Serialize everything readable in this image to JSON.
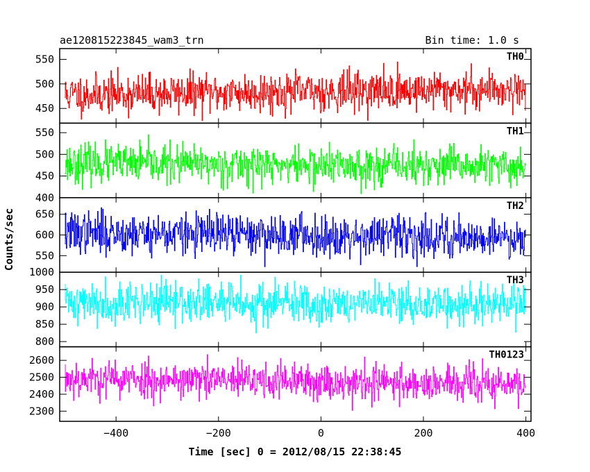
{
  "chart_data": {
    "type": "line",
    "title": "ae120815223845_wam3_trn",
    "subtitle": "Bin time: 1.0 s",
    "xlabel": "Time [sec] 0 = 2012/08/15 22:38:45",
    "ylabel": "Counts/sec",
    "xlim": [
      -510,
      410
    ],
    "xticks": [
      -400,
      -200,
      0,
      200,
      400
    ],
    "xtick_labels": [
      "−400",
      "−200",
      "0",
      "200",
      "400"
    ],
    "x_start": -500,
    "x_end": 400,
    "x_step": 1,
    "panels": [
      {
        "name": "TH0",
        "color": "#ff0000",
        "ylim": [
          420,
          572
        ],
        "yticks": [
          450,
          500,
          550
        ],
        "mean": 484,
        "sd": 20,
        "trend": 6,
        "seed": 11
      },
      {
        "name": "TH1",
        "color": "#00ff00",
        "ylim": [
          400,
          572
        ],
        "yticks": [
          400,
          450,
          500,
          550
        ],
        "mean": 475,
        "sd": 22,
        "trend": -4,
        "seed": 23
      },
      {
        "name": "TH2",
        "color": "#0000ff",
        "ylim": [
          510,
          690
        ],
        "yticks": [
          550,
          600,
          650
        ],
        "mean": 600,
        "sd": 25,
        "trend": -6,
        "seed": 37
      },
      {
        "name": "TH3",
        "color": "#00ffff",
        "ylim": [
          785,
          1000
        ],
        "yticks": [
          800,
          850,
          900,
          950,
          1000
        ],
        "mean": 910,
        "sd": 30,
        "trend": -5,
        "seed": 41
      },
      {
        "name": "TH0123",
        "color": "#ff00ff",
        "ylim": [
          2240,
          2680
        ],
        "yticks": [
          2300,
          2400,
          2500,
          2600
        ],
        "mean": 2475,
        "sd": 55,
        "trend": -20,
        "seed": 53
      }
    ]
  }
}
